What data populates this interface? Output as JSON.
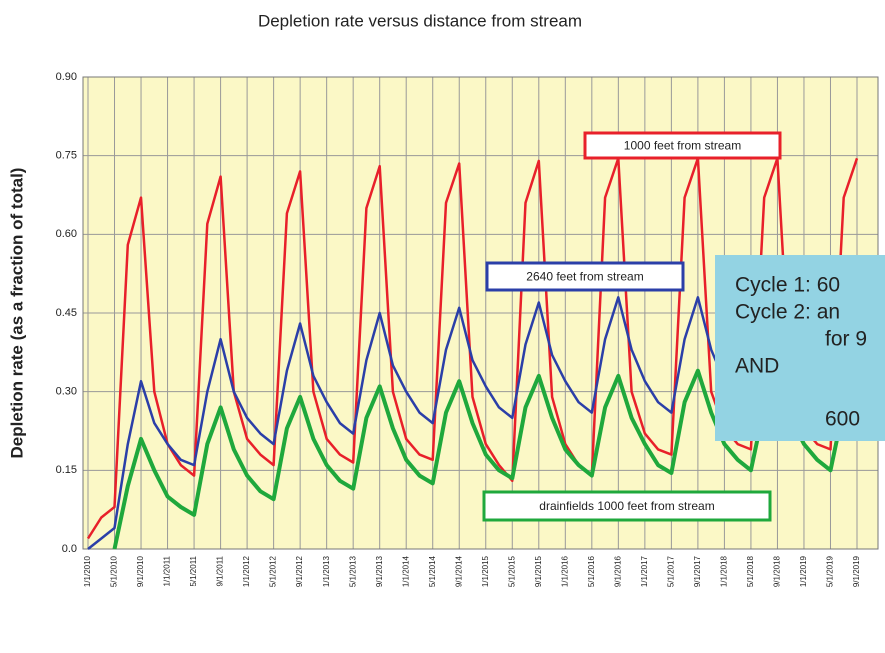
{
  "chart_data": {
    "type": "line",
    "title": "Depletion rate versus distance from stream",
    "y_label": "Depletion rate (as a fraction of total)",
    "categories": [
      "1/1/2010",
      null,
      "5/1/2010",
      null,
      "9/1/2010",
      null,
      "1/1/2011",
      null,
      "5/1/2011",
      null,
      "9/1/2011",
      null,
      "1/1/2012",
      null,
      "5/1/2012",
      null,
      "9/1/2012",
      null,
      "1/1/2013",
      null,
      "5/1/2013",
      null,
      "9/1/2013",
      null,
      "1/1/2014",
      null,
      "5/1/2014",
      null,
      "9/1/2014",
      null,
      "1/1/2015",
      null,
      "5/1/2015",
      null,
      "9/1/2015",
      null,
      "1/1/2016",
      null,
      "5/1/2016",
      null,
      "9/1/2016",
      null,
      "1/1/2017",
      null,
      "5/1/2017",
      null,
      "9/1/2017",
      null,
      "1/1/2018",
      null,
      "5/1/2018",
      null,
      "9/1/2018",
      null,
      "1/1/2019",
      null,
      "5/1/2019",
      null,
      "9/1/2019"
    ],
    "series": [
      {
        "name": "1000 feet from stream",
        "color": "#e8202a",
        "values": [
          0.02,
          0.06,
          0.08,
          0.58,
          0.67,
          0.3,
          0.2,
          0.16,
          0.14,
          0.62,
          0.71,
          0.3,
          0.21,
          0.18,
          0.16,
          0.64,
          0.72,
          0.3,
          0.21,
          0.18,
          0.165,
          0.65,
          0.73,
          0.3,
          0.21,
          0.18,
          0.17,
          0.66,
          0.735,
          0.29,
          0.2,
          0.16,
          0.13,
          0.66,
          0.74,
          0.29,
          0.2,
          0.16,
          0.14,
          0.67,
          0.745,
          0.3,
          0.22,
          0.19,
          0.18,
          0.67,
          0.745,
          0.3,
          0.23,
          0.2,
          0.19,
          0.67,
          0.745,
          0.3,
          0.23,
          0.2,
          0.19,
          0.67,
          0.745
        ]
      },
      {
        "name": "2640 feet from stream",
        "color": "#2b3fa8",
        "values": [
          0.0,
          0.02,
          0.04,
          0.2,
          0.32,
          0.24,
          0.2,
          0.17,
          0.16,
          0.3,
          0.4,
          0.3,
          0.25,
          0.22,
          0.2,
          0.34,
          0.43,
          0.33,
          0.28,
          0.24,
          0.22,
          0.36,
          0.45,
          0.35,
          0.3,
          0.26,
          0.24,
          0.38,
          0.46,
          0.36,
          0.31,
          0.27,
          0.25,
          0.39,
          0.47,
          0.37,
          0.32,
          0.28,
          0.26,
          0.4,
          0.48,
          0.38,
          0.32,
          0.28,
          0.26,
          0.4,
          0.48,
          0.38,
          0.32,
          0.28,
          0.26,
          0.4,
          0.48,
          0.38,
          0.33,
          0.29,
          0.27,
          0.4,
          0.48
        ]
      },
      {
        "name": "drainfields 1000 feet from stream",
        "color": "#1fa83c",
        "values": [
          null,
          null,
          0.0,
          0.12,
          0.21,
          0.15,
          0.1,
          0.08,
          0.065,
          0.2,
          0.27,
          0.19,
          0.14,
          0.11,
          0.095,
          0.23,
          0.29,
          0.21,
          0.16,
          0.13,
          0.115,
          0.25,
          0.31,
          0.23,
          0.17,
          0.14,
          0.125,
          0.26,
          0.32,
          0.24,
          0.18,
          0.15,
          0.135,
          0.27,
          0.33,
          0.25,
          0.19,
          0.16,
          0.14,
          0.27,
          0.33,
          0.25,
          0.2,
          0.16,
          0.145,
          0.28,
          0.34,
          0.26,
          0.2,
          0.17,
          0.15,
          0.27,
          0.33,
          0.25,
          0.2,
          0.17,
          0.15,
          0.27,
          0.33
        ]
      }
    ],
    "ylim": [
      0,
      0.9
    ],
    "yticks": [
      {
        "value": 0,
        "label": "0.0"
      },
      0.15,
      {
        "value": 0.3,
        "label": "0.30"
      },
      0.45,
      {
        "value": 0.6,
        "label": "0.60"
      },
      0.75,
      {
        "value": 0.9,
        "label": "0.90"
      }
    ],
    "grid": true,
    "overlay_lines": [
      "Cycle 1:  60",
      "Cycle 2: an",
      "for 9",
      "AND",
      "600"
    ]
  }
}
